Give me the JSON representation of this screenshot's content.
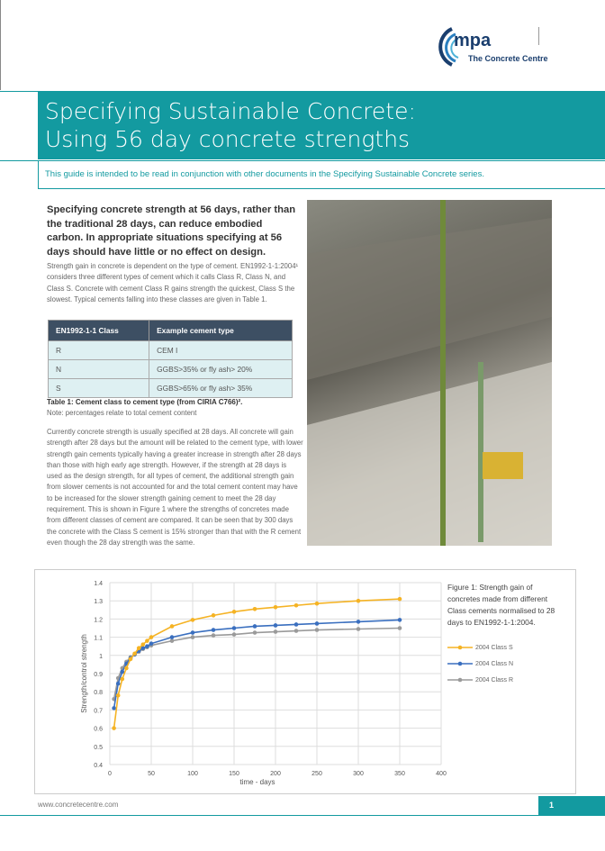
{
  "logo": {
    "mark": "mpa",
    "org": "The Concrete Centre"
  },
  "header": {
    "title_line1": "Specifying Sustainable Concrete:",
    "title_line2": "Using 56 day concrete strengths",
    "subtitle": "This guide is intended to be read in conjunction with other documents in the Specifying Sustainable Concrete series."
  },
  "lead": "Specifying concrete strength at 56 days, rather than the traditional 28 days, can reduce embodied carbon. In appropriate situations specifying at 56 days should have little or no effect on design.",
  "para1": "Strength gain in concrete is dependent on the type of cement. EN1992-1-1:2004¹ considers three different types of cement which it calls Class R, Class N, and Class S. Concrete with cement Class R gains strength the quickest, Class S the slowest. Typical cements falling into these classes are given in Table 1.",
  "table": {
    "headers": [
      "EN1992-1-1 Class",
      "Example cement type"
    ],
    "rows": [
      [
        "R",
        "CEM I"
      ],
      [
        "N",
        "GGBS>35% or fly ash> 20%"
      ],
      [
        "S",
        "GGBS>65% or fly ash> 35%"
      ]
    ],
    "caption": "Table 1: Cement class to cement type (from CIRIA C766)².",
    "note": "Note: percentages relate to total cement content"
  },
  "para2": "Currently concrete strength is usually specified at 28 days. All concrete will gain strength after 28 days but the amount will be related to the cement type, with lower strength gain cements typically having a greater increase in strength after 28 days than those with high early age strength. However, if the strength at 28 days is used as the design strength, for all types of cement, the additional strength gain from slower cements is not accounted for and the total cement content may have to be increased for the slower strength gaining cement to meet the 28 day requirement. This is shown in Figure 1 where the strengths of concretes made from different classes of cement are compared. It can be seen that by 300 days the concrete with the Class S cement is 15% stronger than that with the R cement even though the 28 day strength was the same.",
  "figure_caption": "Figure 1: Strength gain of concretes made from different Class cements normalised to 28 days to EN1992-1-1:2004.",
  "chart_data": {
    "type": "line",
    "xlabel": "time - days",
    "ylabel": "Strength/control strength",
    "xlim": [
      0,
      400
    ],
    "ylim": [
      0.4,
      1.4
    ],
    "xticks": [
      0,
      50,
      100,
      150,
      200,
      250,
      300,
      350,
      400
    ],
    "yticks": [
      0.4,
      0.5,
      0.6,
      0.7,
      0.8,
      0.9,
      1,
      1.1,
      1.2,
      1.3,
      1.4
    ],
    "grid": true,
    "legend": "right",
    "x": [
      5,
      10,
      15,
      20,
      25,
      30,
      35,
      40,
      45,
      50,
      75,
      100,
      125,
      150,
      175,
      200,
      225,
      250,
      300,
      350
    ],
    "series": [
      {
        "name": "2004 Class S",
        "color": "#f5b324",
        "values": [
          0.6,
          0.78,
          0.87,
          0.93,
          0.98,
          1.01,
          1.04,
          1.06,
          1.08,
          1.1,
          1.16,
          1.195,
          1.22,
          1.24,
          1.255,
          1.265,
          1.275,
          1.285,
          1.3,
          1.31
        ]
      },
      {
        "name": "2004 Class N",
        "color": "#3a6fbf",
        "values": [
          0.71,
          0.845,
          0.91,
          0.955,
          0.985,
          1.005,
          1.025,
          1.04,
          1.05,
          1.065,
          1.1,
          1.125,
          1.14,
          1.15,
          1.16,
          1.165,
          1.17,
          1.175,
          1.185,
          1.195
        ]
      },
      {
        "name": "2004 Class R",
        "color": "#9a9a9a",
        "values": [
          0.76,
          0.875,
          0.93,
          0.965,
          0.99,
          1.005,
          1.02,
          1.035,
          1.045,
          1.055,
          1.08,
          1.1,
          1.11,
          1.115,
          1.125,
          1.13,
          1.135,
          1.14,
          1.145,
          1.15
        ]
      }
    ]
  },
  "footer": {
    "url": "www.concretecentre.com",
    "page": "1"
  },
  "colors": {
    "teal": "#139aa0",
    "table_header": "#3d4f63",
    "table_row": "#def0f2"
  }
}
